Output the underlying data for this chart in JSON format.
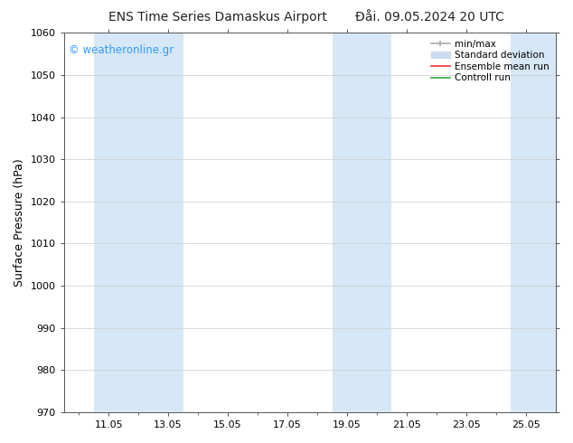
{
  "title_left": "ENS Time Series Damaskus Airport",
  "title_right": "Đåi. 09.05.2024 20 UTC",
  "ylabel": "Surface Pressure (hPa)",
  "ylim": [
    970,
    1060
  ],
  "yticks": [
    970,
    980,
    990,
    1000,
    1010,
    1020,
    1030,
    1040,
    1050,
    1060
  ],
  "xtick_labels": [
    "11.05",
    "13.05",
    "15.05",
    "17.05",
    "19.05",
    "21.05",
    "23.05",
    "25.05"
  ],
  "x_min": 9.5,
  "x_max": 26.0,
  "shaded_bands": [
    {
      "x_start": 10.5,
      "x_end": 13.5,
      "color": "#d6e8f7"
    },
    {
      "x_start": 18.5,
      "x_end": 20.5,
      "color": "#d6e8f7"
    },
    {
      "x_start": 24.5,
      "x_end": 26.0,
      "color": "#d6e8f7"
    }
  ],
  "watermark": "© weatheronline.gr",
  "watermark_color": "#3399ff",
  "bg_color": "#ffffff",
  "plot_bg_color": "#ffffff",
  "grid_color": "#cccccc",
  "title_fontsize": 10,
  "label_fontsize": 9,
  "tick_fontsize": 8
}
